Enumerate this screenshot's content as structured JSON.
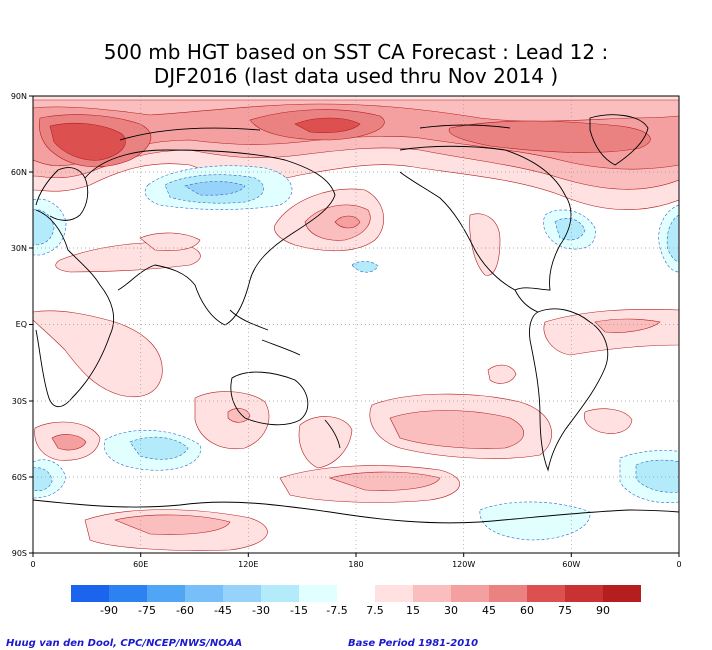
{
  "title": {
    "line1": "500 mb HGT based on SST CA Forecast : Lead 12 :",
    "line2": "DJF2016 (last data used thru Nov 2014 )"
  },
  "map": {
    "projection": "equirectangular, 0 to 360E",
    "lat_labels": [
      "90N",
      "60N",
      "30N",
      "EQ",
      "30S",
      "60S",
      "90S"
    ],
    "lon_labels": [
      "0",
      "60E",
      "120E",
      "180",
      "120W",
      "60W",
      "0"
    ],
    "gridlines": "dotted every 30 degrees",
    "anomaly_regions_description_only_in_picture": true
  },
  "legend": {
    "bins": [
      {
        "color": "#1a64ee"
      },
      {
        "color": "#2d82f2"
      },
      {
        "color": "#50a5f5"
      },
      {
        "color": "#78bef9"
      },
      {
        "color": "#96d2fa"
      },
      {
        "color": "#b4ebfb"
      },
      {
        "color": "#e1ffff"
      },
      {
        "color": "#ffffff"
      },
      {
        "color": "#ffe1e1"
      },
      {
        "color": "#fbbebe"
      },
      {
        "color": "#f5a0a0"
      },
      {
        "color": "#eb8282"
      },
      {
        "color": "#dc5050"
      },
      {
        "color": "#c83232"
      },
      {
        "color": "#b41e1e"
      }
    ],
    "tick_labels": [
      "-90",
      "-75",
      "-60",
      "-45",
      "-30",
      "-15",
      "-7.5",
      "7.5",
      "15",
      "30",
      "45",
      "60",
      "75",
      "90"
    ]
  },
  "footer": {
    "credit": "Huug van den Dool, CPC/NCEP/NWS/NOAA",
    "base_period": "Base Period 1981-2010"
  }
}
